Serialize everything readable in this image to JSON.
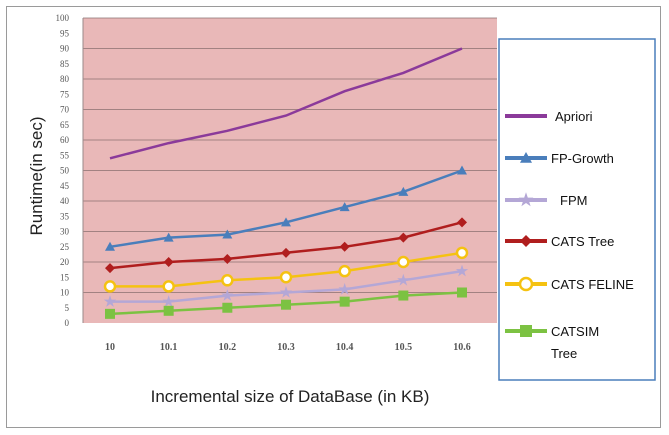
{
  "chart_data": {
    "type": "line",
    "title": "",
    "xlabel": "Incremental size of DataBase (in KB)",
    "ylabel": "Runtime(in sec)",
    "categories": [
      "10",
      "10.1",
      "10.2",
      "10.3",
      "10.4",
      "10.5",
      "10.6"
    ],
    "ylim": [
      0,
      100
    ],
    "yticks": [
      "0",
      "5",
      "10",
      "15",
      "20",
      "25",
      "30",
      "35",
      "40",
      "45",
      "50",
      "55",
      "60",
      "65",
      "70",
      "75",
      "80",
      "85",
      "90",
      "95",
      "100"
    ],
    "grid": true,
    "legend_position": "right",
    "series": [
      {
        "name": "Apriori",
        "color": "#8B3A9A",
        "marker": "none",
        "values": [
          54,
          59,
          63,
          68,
          76,
          82,
          90
        ]
      },
      {
        "name": "FP-Growth",
        "color": "#4A7EBB",
        "marker": "triangle",
        "values": [
          25,
          28,
          29,
          33,
          38,
          43,
          50
        ]
      },
      {
        "name": "FPM",
        "color": "#B4A7D6",
        "marker": "star",
        "values": [
          7,
          7,
          9,
          10,
          11,
          14,
          17
        ]
      },
      {
        "name": "CATS Tree",
        "color": "#B01E1E",
        "marker": "diamond",
        "values": [
          18,
          20,
          21,
          23,
          25,
          28,
          33
        ]
      },
      {
        "name": "CATS FELINE",
        "color": "#F5C211",
        "marker": "circle",
        "values": [
          12,
          12,
          14,
          15,
          17,
          20,
          23
        ]
      },
      {
        "name": "CATSIM Tree",
        "color": "#7CC242",
        "marker": "square",
        "values": [
          3,
          4,
          5,
          6,
          7,
          9,
          10
        ]
      }
    ],
    "legend_labels": [
      {
        "lines": [
          "Apriori"
        ]
      },
      {
        "lines": [
          "FP-Growth"
        ]
      },
      {
        "lines": [
          "FPM"
        ]
      },
      {
        "lines": [
          "CATS Tree"
        ]
      },
      {
        "lines": [
          "CATS FELINE"
        ]
      },
      {
        "lines": [
          "CATSIM",
          "Tree"
        ]
      }
    ],
    "colors": {
      "plot_background": "#E9B8B8",
      "gridline": "#8A7070",
      "legend_border": "#4A7EBB"
    }
  }
}
